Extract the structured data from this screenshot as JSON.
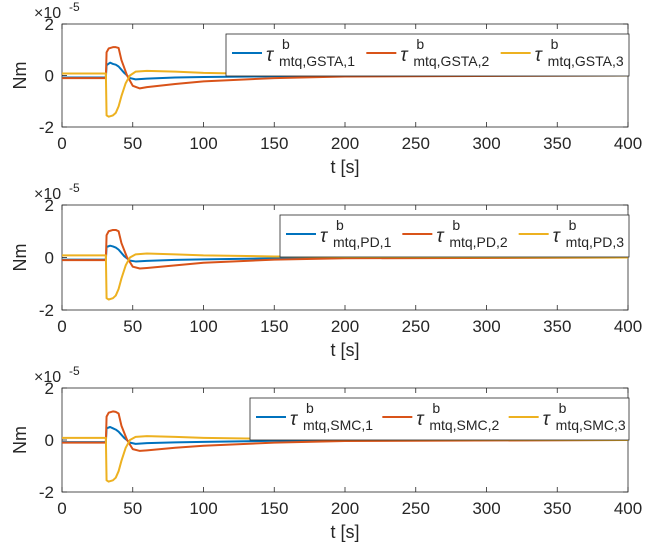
{
  "figure": {
    "background": "#ffffff"
  },
  "chart_data": [
    {
      "type": "line",
      "title": "",
      "xlabel": "t [s]",
      "ylabel": "Nm",
      "exponent_label": "×10",
      "exponent_power": "-5",
      "xlim": [
        0,
        400
      ],
      "ylim": [
        -2,
        2
      ],
      "xticks": [
        "0",
        "50",
        "100",
        "150",
        "200",
        "250",
        "300",
        "350",
        "400"
      ],
      "yticks": [
        "-2",
        "0",
        "2"
      ],
      "grid": false,
      "legend_position": "top-right",
      "series": [
        {
          "name": "τ^b mtq,GSTA,1",
          "name_symbol": "τ",
          "name_superscript": "b",
          "name_subscript": "mtq,GSTA,1",
          "color": "#0072BD",
          "x": [
            0,
            31,
            31.5,
            34,
            36,
            38,
            40,
            44,
            48,
            52,
            60,
            80,
            100,
            150,
            200,
            400
          ],
          "y": [
            -0.08,
            -0.08,
            0.4,
            0.5,
            0.45,
            0.42,
            0.35,
            0.1,
            -0.1,
            -0.15,
            -0.12,
            -0.08,
            -0.06,
            -0.03,
            -0.01,
            0
          ]
        },
        {
          "name": "τ^b mtq,GSTA,2",
          "name_symbol": "τ",
          "name_superscript": "b",
          "name_subscript": "mtq,GSTA,2",
          "color": "#D95319",
          "x": [
            0,
            31,
            31.5,
            33,
            36,
            38,
            40,
            42,
            46,
            50,
            55,
            60,
            80,
            100,
            150,
            200,
            400
          ],
          "y": [
            -0.1,
            -0.1,
            0.9,
            1.05,
            1.1,
            1.1,
            1.07,
            0.6,
            0.0,
            -0.4,
            -0.5,
            -0.45,
            -0.33,
            -0.23,
            -0.1,
            -0.04,
            0
          ]
        },
        {
          "name": "τ^b mtq,GSTA,3",
          "name_symbol": "τ",
          "name_superscript": "b",
          "name_subscript": "mtq,GSTA,3",
          "color": "#EDB120",
          "x": [
            0,
            31,
            31.5,
            33,
            36,
            38,
            40,
            42,
            45,
            48,
            52,
            60,
            80,
            100,
            150,
            200,
            400
          ],
          "y": [
            0.08,
            0.08,
            -1.55,
            -1.6,
            -1.55,
            -1.45,
            -1.2,
            -0.8,
            -0.3,
            0.0,
            0.15,
            0.18,
            0.15,
            0.1,
            0.05,
            0.02,
            0
          ]
        }
      ]
    },
    {
      "type": "line",
      "title": "",
      "xlabel": "t [s]",
      "ylabel": "Nm",
      "exponent_label": "×10",
      "exponent_power": "-5",
      "xlim": [
        0,
        400
      ],
      "ylim": [
        -2,
        2
      ],
      "xticks": [
        "0",
        "50",
        "100",
        "150",
        "200",
        "250",
        "300",
        "350",
        "400"
      ],
      "yticks": [
        "-2",
        "0",
        "2"
      ],
      "grid": false,
      "legend_position": "top-right",
      "series": [
        {
          "name": "τ^b mtq,PD,1",
          "name_symbol": "τ",
          "name_superscript": "b",
          "name_subscript": "mtq,PD,1",
          "color": "#0072BD",
          "x": [
            0,
            31,
            31.5,
            34,
            36,
            38,
            40,
            44,
            48,
            52,
            60,
            80,
            100,
            150,
            200,
            400
          ],
          "y": [
            -0.08,
            -0.08,
            0.4,
            0.45,
            0.42,
            0.38,
            0.3,
            0.05,
            -0.12,
            -0.15,
            -0.13,
            -0.09,
            -0.07,
            -0.03,
            -0.01,
            0
          ]
        },
        {
          "name": "τ^b mtq,PD,2",
          "name_symbol": "τ",
          "name_superscript": "b",
          "name_subscript": "mtq,PD,2",
          "color": "#D95319",
          "x": [
            0,
            31,
            31.5,
            33,
            36,
            38,
            40,
            42,
            46,
            50,
            55,
            60,
            80,
            100,
            150,
            200,
            400
          ],
          "y": [
            -0.1,
            -0.1,
            0.85,
            1.0,
            1.05,
            1.05,
            1.0,
            0.55,
            0.0,
            -0.35,
            -0.42,
            -0.4,
            -0.3,
            -0.2,
            -0.08,
            -0.03,
            0
          ]
        },
        {
          "name": "τ^b mtq,PD,3",
          "name_symbol": "τ",
          "name_superscript": "b",
          "name_subscript": "mtq,PD,3",
          "color": "#EDB120",
          "x": [
            0,
            31,
            31.5,
            33,
            36,
            38,
            40,
            42,
            45,
            48,
            52,
            60,
            80,
            100,
            150,
            200,
            400
          ],
          "y": [
            0.08,
            0.08,
            -1.55,
            -1.6,
            -1.55,
            -1.45,
            -1.2,
            -0.8,
            -0.3,
            0.0,
            0.12,
            0.15,
            0.12,
            0.08,
            0.04,
            0.02,
            0
          ]
        }
      ]
    },
    {
      "type": "line",
      "title": "",
      "xlabel": "t [s]",
      "ylabel": "Nm",
      "exponent_label": "×10",
      "exponent_power": "-5",
      "xlim": [
        0,
        400
      ],
      "ylim": [
        -2,
        2
      ],
      "xticks": [
        "0",
        "50",
        "100",
        "150",
        "200",
        "250",
        "300",
        "350",
        "400"
      ],
      "yticks": [
        "-2",
        "0",
        "2"
      ],
      "grid": false,
      "legend_position": "top-right",
      "series": [
        {
          "name": "τ^b mtq,SMC,1",
          "name_symbol": "τ",
          "name_superscript": "b",
          "name_subscript": "mtq,SMC,1",
          "color": "#0072BD",
          "x": [
            0,
            31,
            31.5,
            34,
            36,
            38,
            40,
            44,
            48,
            52,
            60,
            80,
            100,
            150,
            200,
            400
          ],
          "y": [
            -0.08,
            -0.08,
            0.45,
            0.5,
            0.45,
            0.4,
            0.32,
            0.08,
            -0.1,
            -0.15,
            -0.12,
            -0.09,
            -0.07,
            -0.03,
            -0.01,
            0
          ]
        },
        {
          "name": "τ^b mtq,SMC,2",
          "name_symbol": "τ",
          "name_superscript": "b",
          "name_subscript": "mtq,SMC,2",
          "color": "#D95319",
          "x": [
            0,
            31,
            31.5,
            33,
            36,
            38,
            40,
            42,
            46,
            50,
            55,
            60,
            80,
            100,
            150,
            200,
            400
          ],
          "y": [
            -0.1,
            -0.1,
            0.9,
            1.05,
            1.1,
            1.08,
            1.02,
            0.55,
            0.0,
            -0.35,
            -0.42,
            -0.4,
            -0.3,
            -0.22,
            -0.1,
            -0.04,
            0
          ]
        },
        {
          "name": "τ^b mtq,SMC,3",
          "name_symbol": "τ",
          "name_superscript": "b",
          "name_subscript": "mtq,SMC,3",
          "color": "#EDB120",
          "x": [
            0,
            31,
            31.5,
            33,
            36,
            38,
            40,
            42,
            45,
            48,
            52,
            60,
            80,
            100,
            150,
            200,
            400
          ],
          "y": [
            0.08,
            0.08,
            -1.55,
            -1.6,
            -1.55,
            -1.45,
            -1.2,
            -0.8,
            -0.3,
            0.0,
            0.12,
            0.15,
            0.12,
            0.08,
            0.04,
            0.02,
            0
          ]
        }
      ]
    }
  ]
}
